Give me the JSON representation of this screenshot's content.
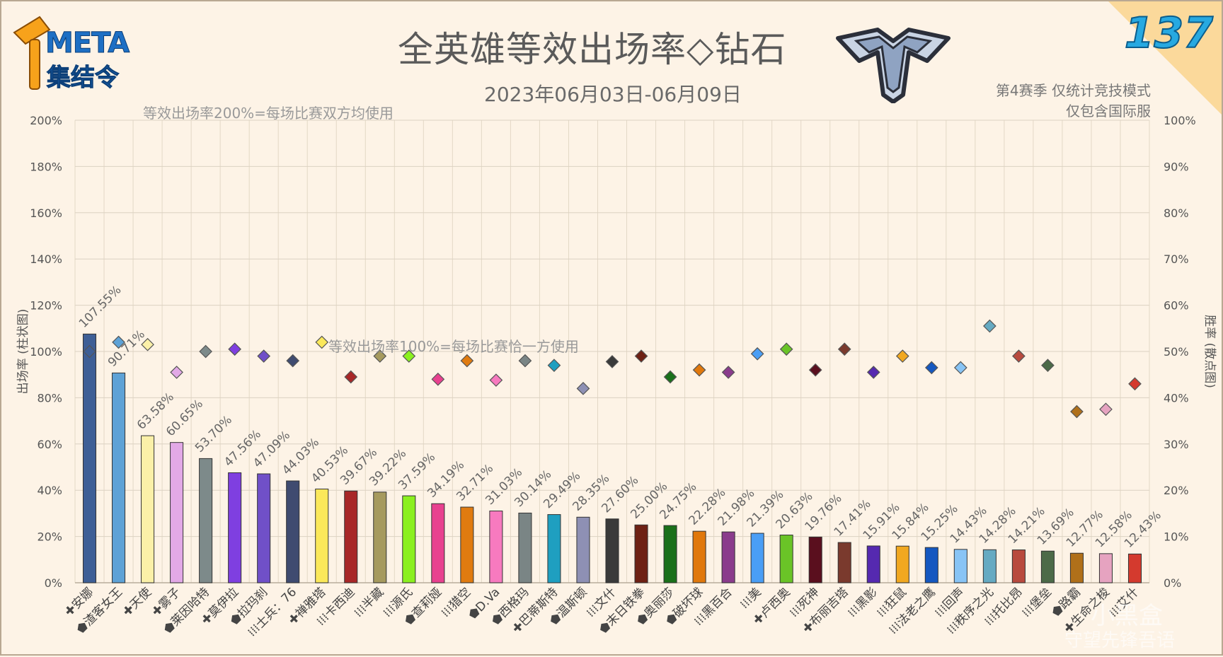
{
  "header": {
    "title": "全英雄等效出场率◇钻石",
    "subtitle": "2023年06月03日-06月09日",
    "note_line1": "第4赛季 仅统计竞技模式",
    "note_line2": "仅包含国际服",
    "logo_meta": "META",
    "logo_sub": "集结令",
    "issue_number": "137",
    "rank_icon": "diamond-rank-icon"
  },
  "annotations": {
    "line200": "等效出场率200%=每场比赛双方均使用",
    "line100": "等效出场率100%=每场比赛恰一方使用"
  },
  "chart_data": {
    "type": "bar",
    "ylabel": "出场率 (柱状图)",
    "y2label": "胜率 (散点图)",
    "ylim": [
      0,
      200
    ],
    "y2lim": [
      0,
      100
    ],
    "yticks": [
      "0%",
      "20%",
      "40%",
      "60%",
      "80%",
      "100%",
      "120%",
      "140%",
      "160%",
      "180%",
      "200%"
    ],
    "y2ticks": [
      "0%",
      "10%",
      "20%",
      "30%",
      "40%",
      "50%",
      "60%",
      "70%",
      "80%",
      "90%",
      "100%"
    ],
    "grid": true,
    "categories": [
      {
        "label": "✚安娜",
        "pick": 107.55,
        "pick_label": "107.55%",
        "win": 50.0,
        "color": "#3e5f96"
      },
      {
        "label": "⬟渣客女王",
        "pick": 90.71,
        "pick_label": "90.71%",
        "win": 52.0,
        "color": "#5ea2d6"
      },
      {
        "label": "✚天使",
        "pick": 63.58,
        "pick_label": "63.58%",
        "win": 51.5,
        "color": "#fbf0a8"
      },
      {
        "label": "✚雾子",
        "pick": 60.65,
        "pick_label": "60.65%",
        "win": 45.5,
        "color": "#e2a9e6"
      },
      {
        "label": "⬟莱因哈特",
        "pick": 53.7,
        "pick_label": "53.70%",
        "win": 50.0,
        "color": "#7d8a8a"
      },
      {
        "label": "✚莫伊拉",
        "pick": 47.56,
        "pick_label": "47.56%",
        "win": 50.5,
        "color": "#7f3fe0"
      },
      {
        "label": "⬟拉玛刹",
        "pick": 47.09,
        "pick_label": "47.09%",
        "win": 49.0,
        "color": "#7050c8"
      },
      {
        "label": "⁞⁞⁞士兵：76",
        "pick": 44.03,
        "pick_label": "44.03%",
        "win": 48.0,
        "color": "#3f4b70"
      },
      {
        "label": "✚禅雅塔",
        "pick": 40.53,
        "pick_label": "40.53%",
        "win": 52.0,
        "color": "#fbe85a"
      },
      {
        "label": "⁞⁞⁞卡西迪",
        "pick": 39.67,
        "pick_label": "39.67%",
        "win": 44.5,
        "color": "#a82727"
      },
      {
        "label": "⁞⁞⁞半藏",
        "pick": 39.22,
        "pick_label": "39.22%",
        "win": 49.0,
        "color": "#a69a5e"
      },
      {
        "label": "⁞⁞⁞源氏",
        "pick": 37.59,
        "pick_label": "37.59%",
        "win": 49.0,
        "color": "#8bf01f"
      },
      {
        "label": "⬟查莉娅",
        "pick": 34.19,
        "pick_label": "34.19%",
        "win": 44.0,
        "color": "#e8418f"
      },
      {
        "label": "⁞⁞⁞猎空",
        "pick": 32.71,
        "pick_label": "32.71%",
        "win": 48.0,
        "color": "#e07b10"
      },
      {
        "label": "⬟D.Va",
        "pick": 31.03,
        "pick_label": "31.03%",
        "win": 43.8,
        "color": "#f77abf"
      },
      {
        "label": "⬟西格玛",
        "pick": 30.14,
        "pick_label": "30.14%",
        "win": 48.0,
        "color": "#7a8585"
      },
      {
        "label": "✚巴蒂斯特",
        "pick": 29.49,
        "pick_label": "29.49%",
        "win": 47.0,
        "color": "#1f9fc0"
      },
      {
        "label": "⬟温斯顿",
        "pick": 28.35,
        "pick_label": "28.35%",
        "win": 42.0,
        "color": "#8e90b4"
      },
      {
        "label": "⁞⁞⁞文什",
        "pick": 27.6,
        "pick_label": "27.60%",
        "win": 47.8,
        "color": "#3a3a3a"
      },
      {
        "label": "⬟末日铁拳",
        "pick": 25.0,
        "pick_label": "25.00%",
        "win": 49.0,
        "color": "#6e2114"
      },
      {
        "label": "⬟奥丽莎",
        "pick": 24.75,
        "pick_label": "24.75%",
        "win": 44.5,
        "color": "#1a701a"
      },
      {
        "label": "⬟破坏球",
        "pick": 22.28,
        "pick_label": "22.28%",
        "win": 46.0,
        "color": "#e0780c"
      },
      {
        "label": "⁞⁞⁞黑百合",
        "pick": 21.98,
        "pick_label": "21.98%",
        "win": 45.5,
        "color": "#8a3c8c"
      },
      {
        "label": "⁞⁞⁞美",
        "pick": 21.39,
        "pick_label": "21.39%",
        "win": 49.5,
        "color": "#4a9ef5"
      },
      {
        "label": "✚卢西奥",
        "pick": 20.63,
        "pick_label": "20.63%",
        "win": 50.5,
        "color": "#6ac427"
      },
      {
        "label": "⁞⁞⁞死神",
        "pick": 19.76,
        "pick_label": "19.76%",
        "win": 46.0,
        "color": "#5a0f1e"
      },
      {
        "label": "✚布丽吉塔",
        "pick": 17.41,
        "pick_label": "17.41%",
        "win": 50.5,
        "color": "#7a3a2d"
      },
      {
        "label": "⁞⁞⁞黑影",
        "pick": 15.91,
        "pick_label": "15.91%",
        "win": 45.5,
        "color": "#5529b0"
      },
      {
        "label": "⁞⁞⁞狂鼠",
        "pick": 15.84,
        "pick_label": "15.84%",
        "win": 49.0,
        "color": "#f1a820"
      },
      {
        "label": "⁞⁞⁞法老之鹰",
        "pick": 15.25,
        "pick_label": "15.25%",
        "win": 46.5,
        "color": "#1558c0"
      },
      {
        "label": "⁞⁞⁞回声",
        "pick": 14.43,
        "pick_label": "14.43%",
        "win": 46.5,
        "color": "#88c4f5"
      },
      {
        "label": "⁞⁞⁞秩序之光",
        "pick": 14.28,
        "pick_label": "14.28%",
        "win": 55.5,
        "color": "#66aac2"
      },
      {
        "label": "⁞⁞⁞托比昂",
        "pick": 14.21,
        "pick_label": "14.21%",
        "win": 49.0,
        "color": "#b84a3e"
      },
      {
        "label": "⁞⁞⁞堡垒",
        "pick": 13.69,
        "pick_label": "13.69%",
        "win": 47.0,
        "color": "#4c6a48"
      },
      {
        "label": "⬟路霸",
        "pick": 12.77,
        "pick_label": "12.77%",
        "win": 37.0,
        "color": "#b0701a"
      },
      {
        "label": "✚生命之梭",
        "pick": 12.58,
        "pick_label": "12.58%",
        "win": 37.5,
        "color": "#e6a3c0"
      },
      {
        "label": "⁞⁞⁞艾什",
        "pick": 12.43,
        "pick_label": "12.43%",
        "win": 43.0,
        "color": "#d43a2e"
      }
    ]
  },
  "watermark": {
    "line1": "小黑盒",
    "line2": "守望先锋吾语"
  }
}
